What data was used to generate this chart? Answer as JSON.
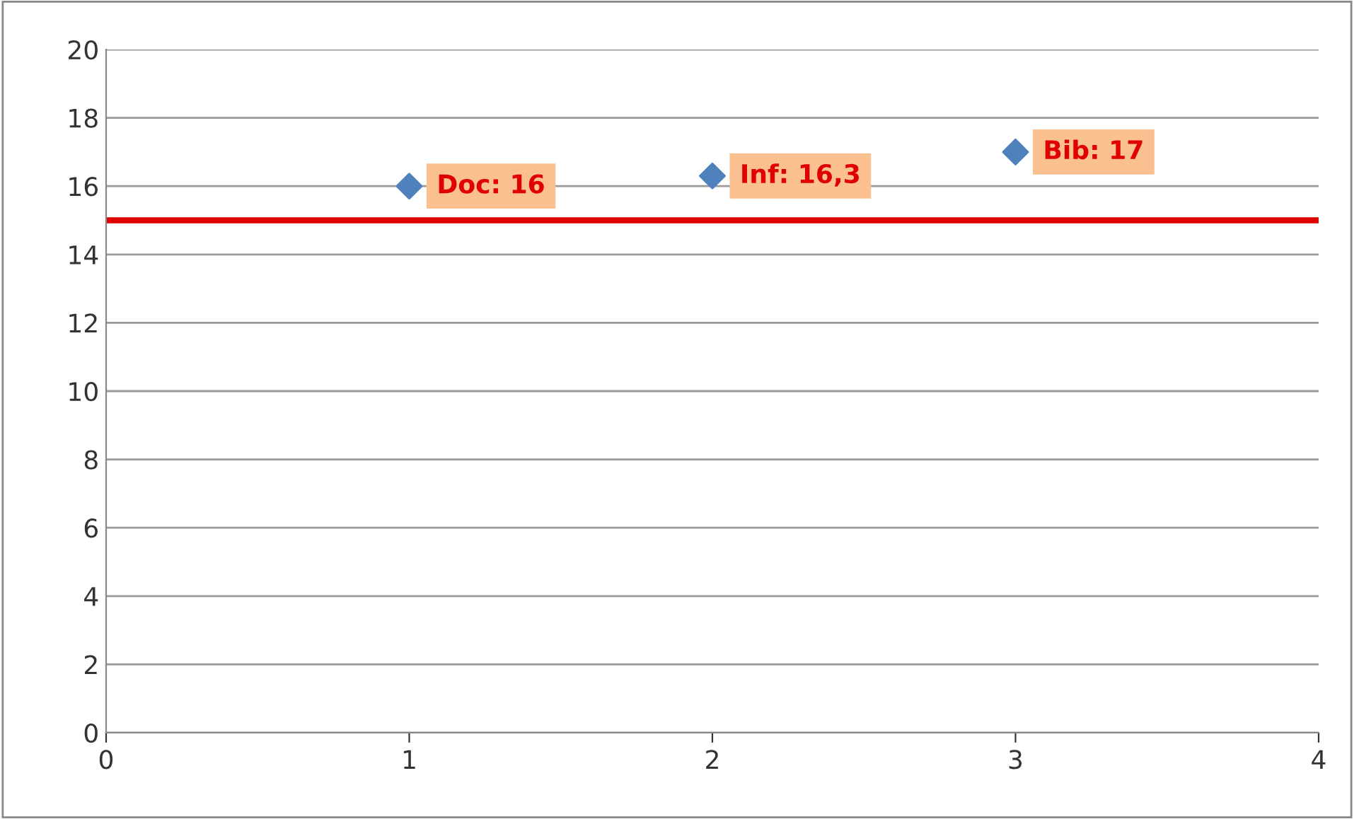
{
  "chart_data": {
    "type": "scatter",
    "x": [
      1,
      2,
      3
    ],
    "series": [
      {
        "color": "#4f81bd",
        "values": [
          16,
          16.3,
          17
        ],
        "value_labels": [
          "Doc: 16",
          "Inf: 16,3",
          "Bib: 17"
        ]
      }
    ],
    "xlim": [
      0,
      4
    ],
    "xticks": [
      0,
      1,
      2,
      3,
      4
    ],
    "ylim": [
      0,
      20
    ],
    "yticks": [
      0,
      2,
      4,
      6,
      8,
      10,
      12,
      14,
      16,
      18,
      20
    ],
    "ref_lines": [
      {
        "axis": "y",
        "value": 15,
        "color": "#e00000"
      }
    ],
    "grid": "y",
    "marker": "diamond",
    "legend": false
  }
}
